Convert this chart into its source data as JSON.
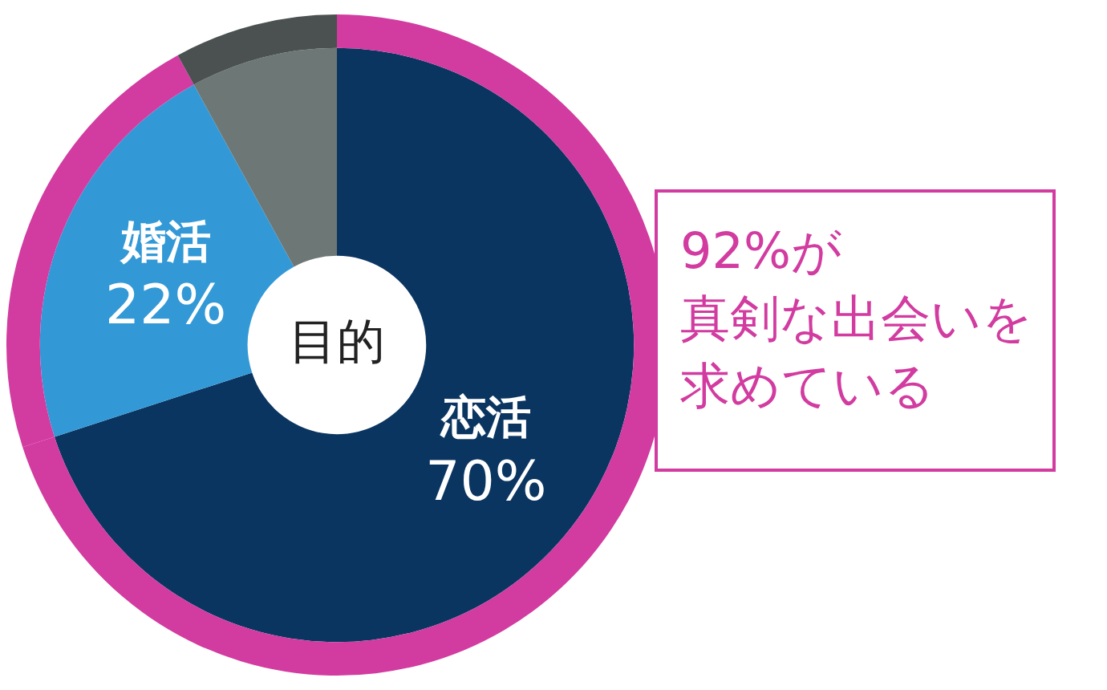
{
  "chart_data": {
    "type": "donut",
    "title": "目的",
    "categories": [
      "恋活",
      "婚活",
      null
    ],
    "series": [
      {
        "values": [
          70,
          22,
          8
        ],
        "colors": [
          "#0b3561",
          "#3399d6",
          "#6d7775"
        ],
        "value_labels": [
          "70%",
          "22%",
          null
        ]
      },
      {
        "values": [
          70,
          22,
          8
        ],
        "colors": [
          "#d23ba0",
          "#d23ba0",
          "#4b5150"
        ]
      }
    ],
    "annotations": [
      "92%が",
      "真剣な出会いを",
      "求めている"
    ],
    "legend": false
  }
}
